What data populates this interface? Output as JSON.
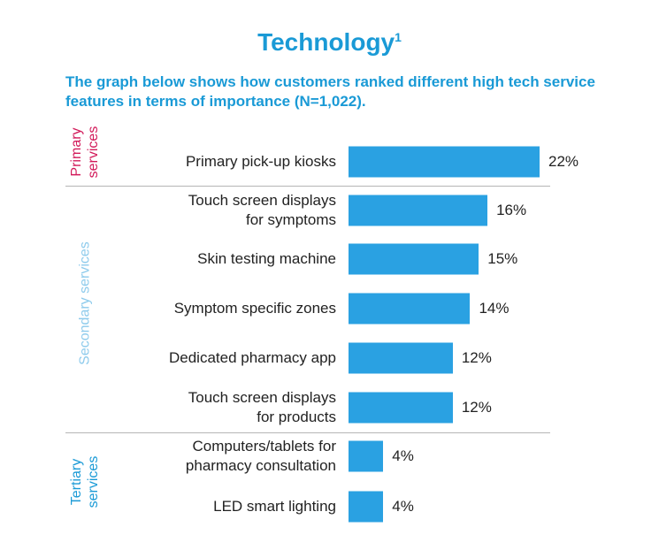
{
  "title": "Technology",
  "title_superscript": "1",
  "subtitle": "The graph below shows how customers ranked different high tech service features in terms of importance (N=1,022).",
  "colors": {
    "bar": "#2aa1e2",
    "title": "#1a9ad6",
    "primary_group": "#d21a5a",
    "secondary_group": "#8ecbec",
    "tertiary_group": "#1a9ad6"
  },
  "chart_data": {
    "type": "bar",
    "orientation": "horizontal",
    "unit": "%",
    "categories": [
      "Primary pick-up kiosks",
      "Touch screen displays\nfor symptoms",
      "Skin testing machine",
      "Symptom specific zones",
      "Dedicated pharmacy app",
      "Touch screen displays\nfor products",
      "Computers/tablets for\npharmacy consultation",
      "LED smart lighting"
    ],
    "values": [
      22,
      16,
      15,
      14,
      12,
      12,
      4,
      4
    ],
    "value_labels": [
      "22%",
      "16%",
      "15%",
      "14%",
      "12%",
      "12%",
      "4%",
      "4%"
    ],
    "groups": [
      {
        "label": "Primary\nservices",
        "count": 1
      },
      {
        "label": "Secondary services",
        "count": 5
      },
      {
        "label": "Tertiary\nservices",
        "count": 2
      }
    ]
  }
}
